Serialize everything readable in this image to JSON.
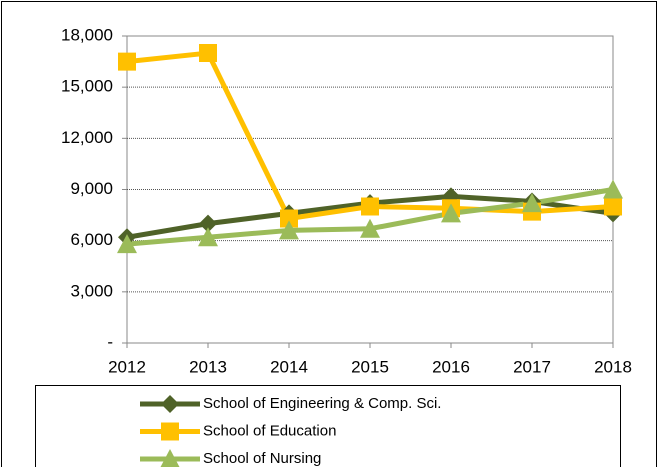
{
  "chart_data": {
    "type": "line",
    "categories": [
      "2012",
      "2013",
      "2014",
      "2015",
      "2016",
      "2017",
      "2018"
    ],
    "series": [
      {
        "name": "School of Engineering & Comp. Sci.",
        "color": "#4f6228",
        "marker": "diamond",
        "values": [
          6200,
          7000,
          7600,
          8200,
          8600,
          8300,
          7600
        ]
      },
      {
        "name": "School of Education",
        "color": "#ffc000",
        "marker": "square",
        "values": [
          16500,
          17000,
          7300,
          8000,
          7900,
          7700,
          8000
        ]
      },
      {
        "name": "School of Nursing",
        "color": "#9bbb59",
        "marker": "triangle",
        "values": [
          5800,
          6200,
          6600,
          6700,
          7600,
          8200,
          9000
        ]
      }
    ],
    "ylim": [
      0,
      18000
    ],
    "yticks": [
      {
        "value": 0,
        "label": "-"
      },
      {
        "value": 3000,
        "label": "3,000"
      },
      {
        "value": 6000,
        "label": "6,000"
      },
      {
        "value": 9000,
        "label": "9,000"
      },
      {
        "value": 12000,
        "label": "12,000"
      },
      {
        "value": 15000,
        "label": "15,000"
      },
      {
        "value": 18000,
        "label": "18,000"
      }
    ],
    "grid": true
  }
}
